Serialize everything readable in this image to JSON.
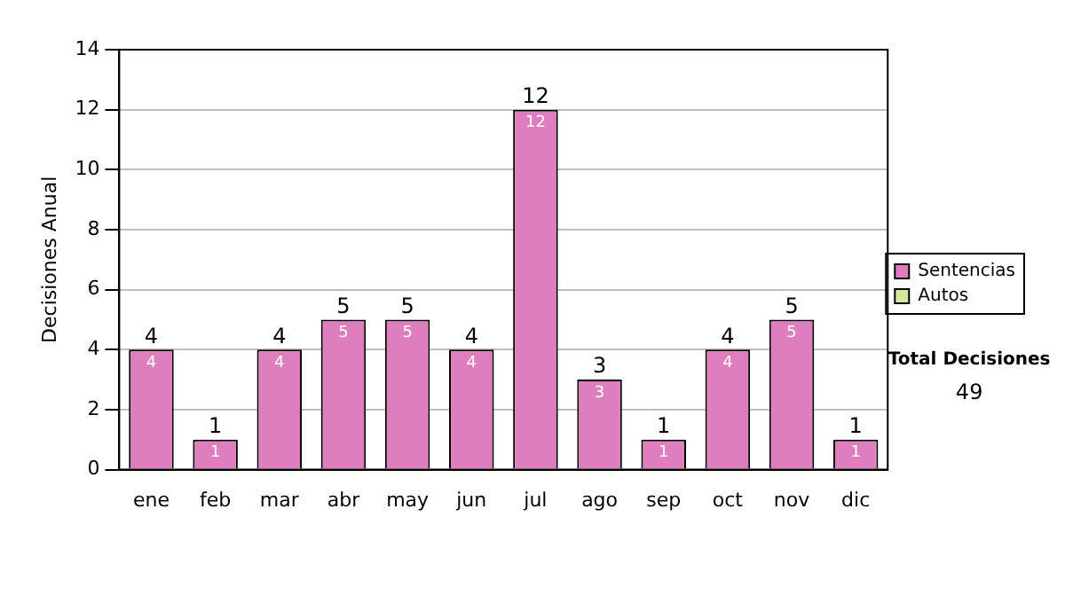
{
  "chart_data": {
    "type": "bar",
    "ylabel": "Decisiones Anual",
    "categories": [
      "ene",
      "feb",
      "mar",
      "abr",
      "may",
      "jun",
      "jul",
      "ago",
      "sep",
      "oct",
      "nov",
      "dic"
    ],
    "series": [
      {
        "name": "Sentencias",
        "color": "#de7ebe",
        "values": [
          4,
          1,
          4,
          5,
          5,
          4,
          12,
          3,
          1,
          4,
          5,
          1
        ],
        "value_labels": [
          "4",
          "1",
          "4",
          "5",
          "5",
          "4",
          "12",
          "3",
          "1",
          "4",
          "5",
          "1"
        ]
      },
      {
        "name": "Autos",
        "color": "#d6e8a0",
        "values": [
          0,
          0,
          0,
          0,
          0,
          0,
          0,
          0,
          0,
          0,
          0,
          0
        ]
      }
    ],
    "stacked": true,
    "totals": [
      "4",
      "1",
      "4",
      "5",
      "5",
      "4",
      "12",
      "3",
      "1",
      "4",
      "5",
      "1"
    ],
    "ylim": [
      0,
      14
    ],
    "yticks": [
      0,
      2,
      4,
      6,
      8,
      10,
      12,
      14
    ],
    "grid": "y",
    "legend": "right",
    "annotations": [
      "Total Decisiones",
      "49"
    ]
  }
}
